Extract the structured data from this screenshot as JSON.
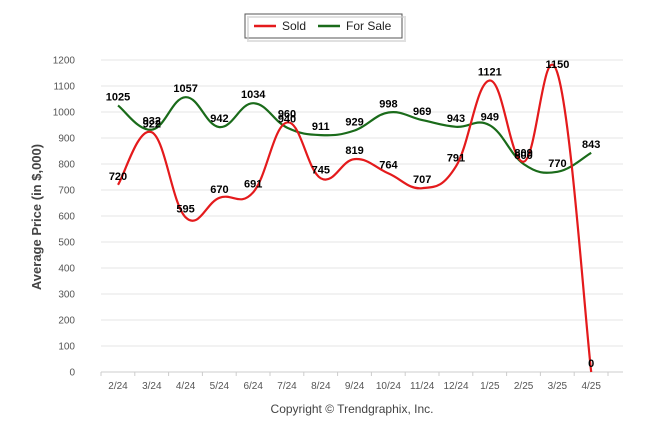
{
  "chart_data": {
    "type": "line",
    "categories": [
      "2/24",
      "3/24",
      "4/24",
      "5/24",
      "6/24",
      "7/24",
      "8/24",
      "9/24",
      "10/24",
      "11/24",
      "12/24",
      "1/25",
      "2/25",
      "3/25",
      "4/25"
    ],
    "series": [
      {
        "name": "Sold",
        "color": "#e41a1c",
        "values": [
          720,
          922,
          595,
          670,
          691,
          960,
          745,
          819,
          764,
          707,
          791,
          1121,
          809,
          1150,
          0
        ]
      },
      {
        "name": "For Sale",
        "color": "#1a6b1a",
        "values": [
          1025,
          932,
          1057,
          942,
          1034,
          940,
          911,
          929,
          998,
          969,
          943,
          949,
          800,
          770,
          843
        ]
      }
    ],
    "ylabel": "Average Price (in $,000)",
    "ylim": [
      0,
      1200
    ],
    "yticks": [
      0,
      100,
      200,
      300,
      400,
      500,
      600,
      700,
      800,
      900,
      1000,
      1100,
      1200
    ],
    "grid": true,
    "legend": "top-center"
  },
  "credit": "Copyright © Trendgraphix, Inc."
}
